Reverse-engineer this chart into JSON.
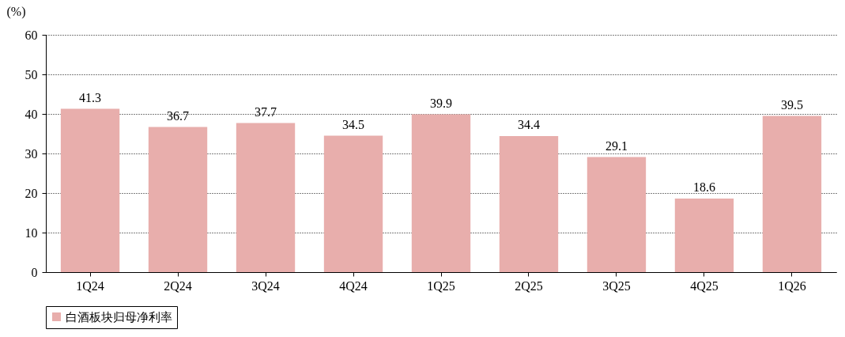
{
  "chart_data": {
    "type": "bar",
    "ylabel": "(%)",
    "categories": [
      "1Q24",
      "2Q24",
      "3Q24",
      "4Q24",
      "1Q25",
      "2Q25",
      "3Q25",
      "4Q25",
      "1Q26"
    ],
    "series": [
      {
        "name": "白酒板块归母净利率",
        "color": "#e8aeac",
        "values": [
          41.3,
          36.7,
          37.7,
          34.5,
          39.9,
          34.4,
          29.1,
          18.6,
          39.5
        ]
      }
    ],
    "ylim": [
      0,
      60
    ],
    "yticks": [
      0,
      10,
      20,
      30,
      40,
      50,
      60
    ],
    "grid": "y",
    "legend": "bottom",
    "data_labels": true
  }
}
